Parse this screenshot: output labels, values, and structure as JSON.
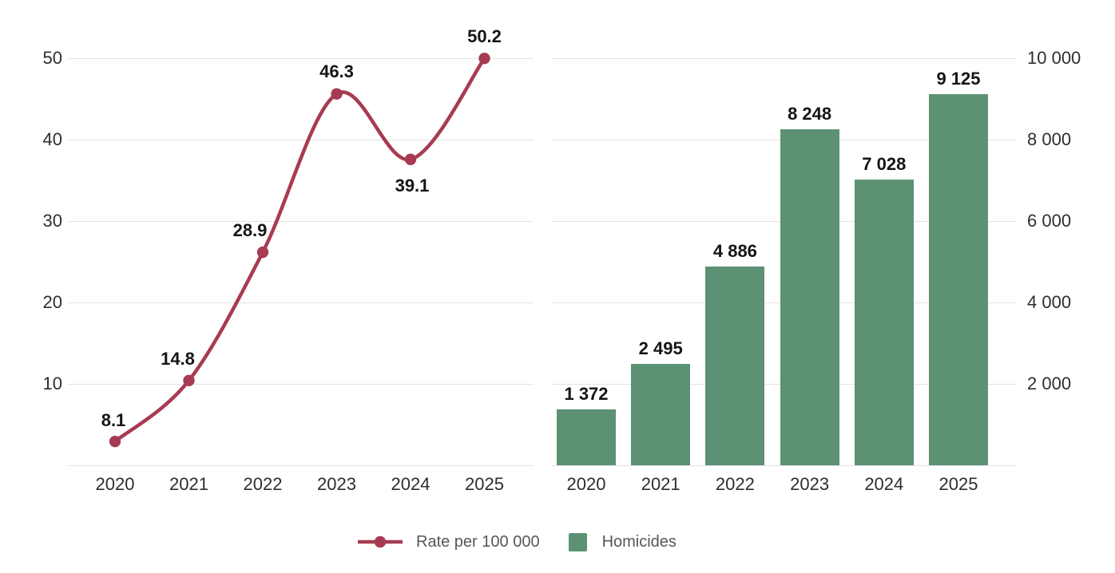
{
  "chart_data": [
    {
      "type": "line",
      "name": "Rate per 100 000",
      "categories": [
        "2020",
        "2021",
        "2022",
        "2023",
        "2024",
        "2025"
      ],
      "values": [
        8.1,
        14.8,
        28.9,
        46.3,
        39.1,
        50.2
      ],
      "value_labels": [
        "8.1",
        "14.8",
        "28.9",
        "46.3",
        "39.1",
        "50.2"
      ],
      "y_axis_side": "left",
      "y_ticks": [
        10,
        20,
        30,
        40,
        50
      ],
      "y_tick_labels": [
        "10",
        "20",
        "30",
        "40",
        "50"
      ],
      "ylim": [
        0,
        55
      ],
      "grid": true,
      "marker": "circle",
      "line_smooth": true
    },
    {
      "type": "bar",
      "name": "Homicides",
      "categories": [
        "2020",
        "2021",
        "2022",
        "2023",
        "2024",
        "2025"
      ],
      "values": [
        1372,
        2495,
        4886,
        8248,
        7028,
        9125
      ],
      "value_labels": [
        "1 372",
        "2 495",
        "4 886",
        "8 248",
        "7 028",
        "9 125"
      ],
      "y_axis_side": "right",
      "y_ticks": [
        2000,
        4000,
        6000,
        8000,
        10000
      ],
      "y_tick_labels": [
        "2 000",
        "4 000",
        "6 000",
        "8 000",
        "10 000"
      ],
      "ylim": [
        0,
        10000
      ],
      "grid": true
    }
  ],
  "legend": {
    "items": [
      {
        "label": "Rate per 100 000",
        "swatch": "line-marker"
      },
      {
        "label": "Homicides",
        "swatch": "square"
      }
    ],
    "position": "bottom-center"
  },
  "colors": {
    "line": "#a73b53",
    "bar": "#5c9174",
    "grid": "#e3e3e3",
    "axis_text": "#2e2e30",
    "data_label": "#151515",
    "legend_text": "#57575a",
    "background": "#ffffff"
  }
}
